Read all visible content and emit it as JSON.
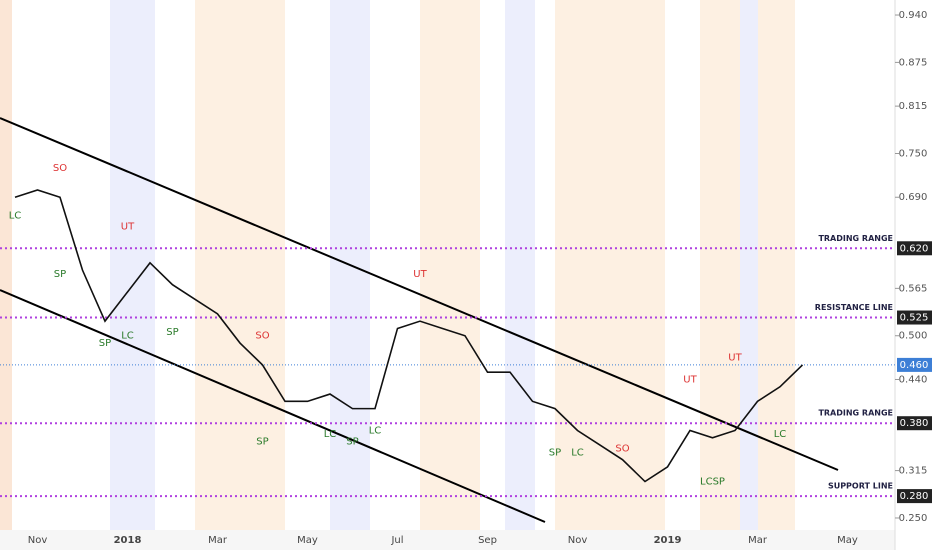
{
  "chart_data": {
    "type": "line",
    "categories": [
      null,
      "Nov",
      null,
      null,
      null,
      "2018",
      null,
      null,
      null,
      "Mar",
      null,
      null,
      null,
      "May",
      null,
      null,
      null,
      "Jul",
      null,
      null,
      null,
      "Sep",
      null,
      null,
      null,
      "Nov",
      null,
      null,
      null,
      "2019",
      null,
      null,
      null,
      "Mar",
      null,
      null,
      null,
      "May",
      null
    ],
    "series": [
      {
        "color": "#111111",
        "values": [
          0.69,
          0.7,
          0.69,
          0.59,
          0.52,
          0.56,
          0.6,
          0.57,
          0.55,
          0.53,
          0.49,
          0.46,
          0.41,
          0.41,
          0.42,
          0.4,
          0.4,
          0.51,
          0.52,
          0.51,
          0.5,
          0.45,
          0.45,
          0.41,
          0.4,
          0.37,
          0.35,
          0.33,
          0.3,
          0.32,
          0.37,
          0.36,
          0.37,
          0.41,
          0.43,
          0.46,
          null,
          null,
          null
        ]
      }
    ],
    "ylim": [
      0.2335,
      0.9606
    ],
    "yticks": [
      {
        "value": 0.94,
        "label": "0.940"
      },
      {
        "value": 0.875,
        "label": "0.875"
      },
      {
        "value": 0.815,
        "label": "0.815"
      },
      {
        "value": 0.75,
        "label": "0.750"
      },
      {
        "value": 0.69,
        "label": "0.690"
      },
      {
        "value": 0.565,
        "label": "0.565"
      },
      {
        "value": 0.5,
        "label": "0.500"
      },
      {
        "value": 0.44,
        "label": "0.440"
      },
      {
        "value": 0.315,
        "label": "0.315"
      },
      {
        "value": 0.25,
        "label": "0.250"
      }
    ],
    "levels": [
      {
        "value": 0.62,
        "price_label": "0.620",
        "label": "TRADING RANGE"
      },
      {
        "value": 0.525,
        "price_label": "0.525",
        "label": "RESISTANCE LINE"
      },
      {
        "value": 0.38,
        "price_label": "0.380",
        "label": "TRADING RANGE"
      },
      {
        "value": 0.28,
        "price_label": "0.280",
        "label": "SUPPORT LINE"
      }
    ],
    "level_color": "#b040e0",
    "last_price": {
      "value": 0.46,
      "label": "0.460",
      "color": "#3d7fd6"
    },
    "annotations": [
      {
        "text": "LC",
        "x": 0,
        "y": 0.665
      },
      {
        "text": "SO",
        "x": 2,
        "y": 0.73
      },
      {
        "text": "SP",
        "x": 2,
        "y": 0.585
      },
      {
        "text": "SP",
        "x": 4,
        "y": 0.49
      },
      {
        "text": "LC",
        "x": 5,
        "y": 0.5
      },
      {
        "text": "UT",
        "x": 5,
        "y": 0.65
      },
      {
        "text": "SP",
        "x": 7,
        "y": 0.505
      },
      {
        "text": "SO",
        "x": 11,
        "y": 0.5
      },
      {
        "text": "SP",
        "x": 11,
        "y": 0.355
      },
      {
        "text": "LC",
        "x": 14,
        "y": 0.365
      },
      {
        "text": "SP",
        "x": 15,
        "y": 0.355
      },
      {
        "text": "LC",
        "x": 16,
        "y": 0.37
      },
      {
        "text": "UT",
        "x": 18,
        "y": 0.585
      },
      {
        "text": "SP",
        "x": 24,
        "y": 0.34
      },
      {
        "text": "LC",
        "x": 25,
        "y": 0.34
      },
      {
        "text": "SO",
        "x": 27,
        "y": 0.345
      },
      {
        "text": "UT",
        "x": 30,
        "y": 0.44
      },
      {
        "text": "LCSP",
        "x": 31,
        "y": 0.3
      },
      {
        "text": "UT",
        "x": 32,
        "y": 0.47
      },
      {
        "text": "LC",
        "x": 34,
        "y": 0.365
      }
    ]
  }
}
